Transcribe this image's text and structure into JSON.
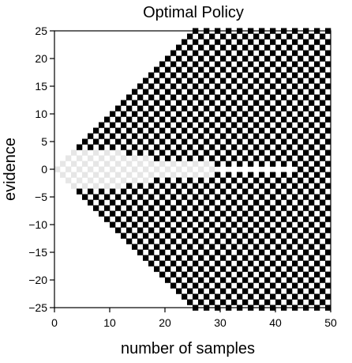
{
  "chart_data": {
    "type": "heatmap",
    "title": "Optimal Policy",
    "xlabel": "number of samples",
    "ylabel": "evidence",
    "xlim": [
      0,
      50
    ],
    "ylim": [
      -25,
      25
    ],
    "x_ticks": [
      0,
      10,
      20,
      30,
      40,
      50
    ],
    "y_ticks": [
      -25,
      -20,
      -15,
      -10,
      -5,
      0,
      5,
      10,
      15,
      20,
      25
    ],
    "x_tick_labels": [
      "0",
      "10",
      "20",
      "30",
      "40",
      "50"
    ],
    "y_tick_labels": [
      "−25",
      "−20",
      "−15",
      "−10",
      "−5",
      "0",
      "5",
      "10",
      "15",
      "20",
      "25"
    ],
    "grid": false,
    "pattern": "checkerboard of reachable (sample, evidence) states",
    "decide_region": {
      "description": "black cells: reachable states outside the continue region",
      "color": "#000000"
    },
    "continue_region": {
      "description": "light gray cells near zero evidence",
      "color": "#e6e6e6",
      "boundary_points": [
        {
          "samples": 0,
          "evidence": 0
        },
        {
          "samples": 3,
          "evidence": 3
        },
        {
          "samples": 10,
          "evidence": 3
        },
        {
          "samples": 20,
          "evidence": 1
        },
        {
          "samples": 28,
          "evidence": 1
        },
        {
          "samples": 29,
          "evidence": 0
        }
      ]
    },
    "white_region": {
      "description": "white cells at zero evidence",
      "color": "#ffffff",
      "x_range": [
        29,
        43
      ],
      "evidence": [
        0
      ]
    },
    "reachable_edge": {
      "slope": 1,
      "saturates_at_samples": 25,
      "max_evidence": 25
    }
  }
}
